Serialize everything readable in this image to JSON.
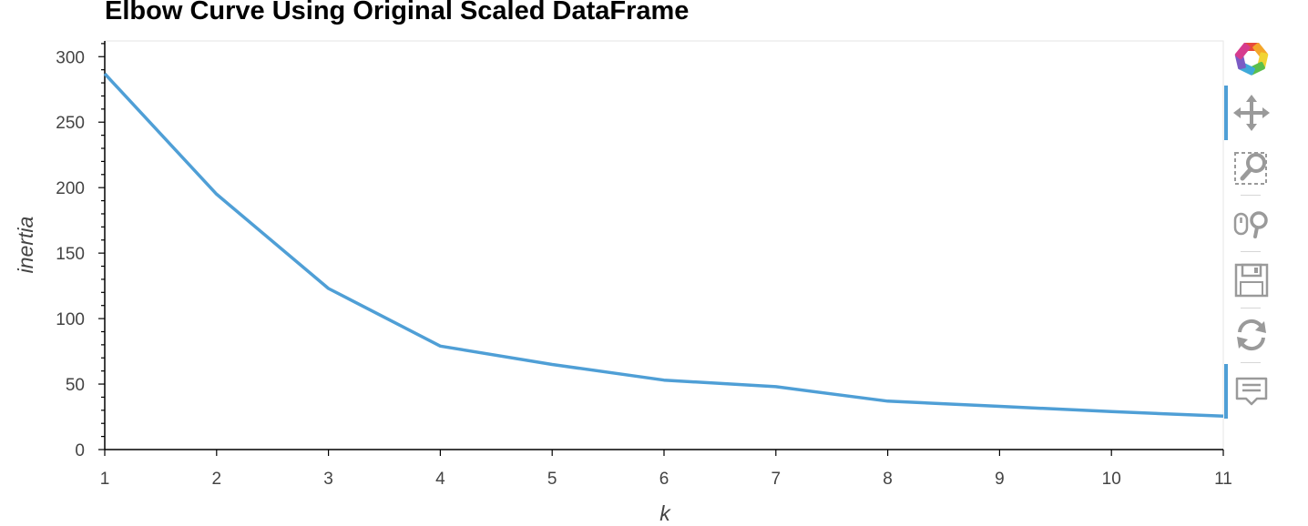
{
  "chart_data": {
    "type": "line",
    "title": "Elbow Curve Using Original Scaled DataFrame",
    "xlabel": "k",
    "ylabel": "inertia",
    "x": [
      1,
      2,
      3,
      4,
      5,
      6,
      7,
      8,
      9,
      10,
      11
    ],
    "series": [
      {
        "values": [
          287,
          195,
          123,
          79,
          65,
          53,
          48,
          37,
          33,
          29,
          25.5
        ]
      }
    ],
    "xlim": [
      1,
      11
    ],
    "ylim": [
      0,
      312
    ],
    "xticks": [
      "1",
      "2",
      "3",
      "4",
      "5",
      "6",
      "7",
      "8",
      "9",
      "10",
      "11"
    ],
    "yticks": [
      "0",
      "50",
      "100",
      "150",
      "200",
      "250",
      "300"
    ],
    "grid": false,
    "line_color": "#4f9fd6"
  },
  "toolbar": {
    "tools": [
      {
        "name": "bokeh-logo-icon"
      },
      {
        "name": "pan-tool-icon",
        "active": true
      },
      {
        "name": "box-zoom-tool-icon"
      },
      {
        "name": "wheel-zoom-tool-icon"
      },
      {
        "name": "save-tool-icon"
      },
      {
        "name": "reset-tool-icon"
      },
      {
        "name": "hover-tool-icon",
        "active": true
      }
    ]
  }
}
